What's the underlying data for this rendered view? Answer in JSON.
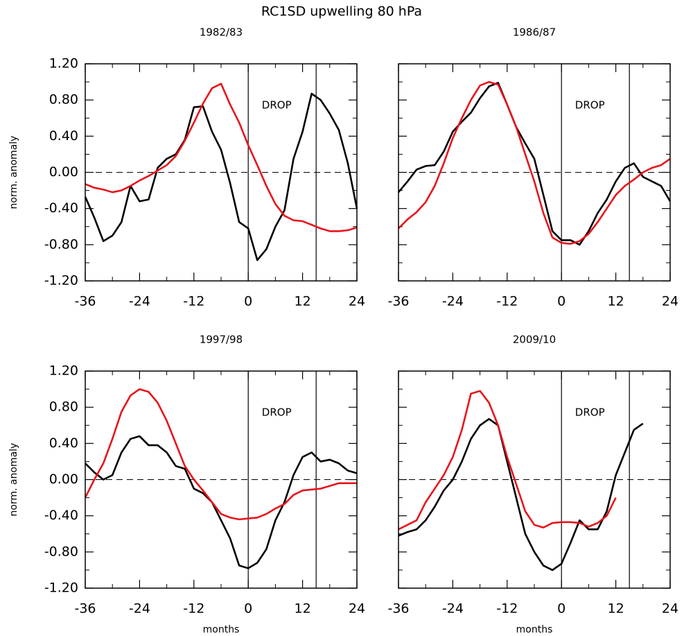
{
  "title": "RC1SD upwelling 80 hPa",
  "chart_data": [
    {
      "type": "line",
      "title": "1982/83",
      "ylabel": "norm. anomaly",
      "x": [
        -36,
        -34,
        -32,
        -30,
        -28,
        -26,
        -24,
        -22,
        -20,
        -18,
        -16,
        -14,
        -12,
        -10,
        -8,
        -6,
        -4,
        -2,
        0,
        2,
        4,
        6,
        8,
        10,
        12,
        14,
        16,
        18,
        20,
        22,
        24
      ],
      "series": [
        {
          "color": "#000000",
          "values": [
            -0.27,
            -0.5,
            -0.76,
            -0.7,
            -0.55,
            -0.15,
            -0.32,
            -0.3,
            0.05,
            0.15,
            0.2,
            0.36,
            0.72,
            0.73,
            0.45,
            0.25,
            -0.12,
            -0.55,
            -0.62,
            -0.97,
            -0.85,
            -0.6,
            -0.42,
            0.15,
            0.45,
            0.87,
            0.8,
            0.65,
            0.47,
            0.1,
            -0.4
          ]
        },
        {
          "color": "#e8141b",
          "values": [
            -0.13,
            -0.17,
            -0.19,
            -0.22,
            -0.2,
            -0.15,
            -0.09,
            -0.04,
            0.02,
            0.08,
            0.18,
            0.35,
            0.55,
            0.76,
            0.93,
            0.98,
            0.75,
            0.55,
            0.3,
            0.08,
            -0.15,
            -0.35,
            -0.48,
            -0.53,
            -0.54,
            -0.58,
            -0.62,
            -0.65,
            -0.65,
            -0.64,
            -0.61
          ]
        }
      ],
      "xlim": [
        -36,
        24
      ],
      "xticks": [
        -36,
        -24,
        -12,
        0,
        12,
        24
      ],
      "ylim": [
        -1.2,
        1.2
      ],
      "yticks": [
        {
          "value": -1.2,
          "label": "-1.20"
        },
        {
          "value": -0.8,
          "label": "-0.80"
        },
        {
          "value": -0.4,
          "label": "-0.40"
        },
        {
          "value": 0,
          "label": "0.00"
        },
        {
          "value": 0.4,
          "label": "0.40"
        },
        {
          "value": 0.8,
          "label": "0.80"
        },
        {
          "value": 1.2,
          "label": "1.20"
        }
      ],
      "vlines": [
        0,
        15
      ],
      "hline": 0,
      "annotations": [
        {
          "text": "DROP",
          "x": 3,
          "y": 0.74
        }
      ]
    },
    {
      "type": "line",
      "title": "1986/87",
      "x": [
        -36,
        -34,
        -32,
        -30,
        -28,
        -26,
        -24,
        -22,
        -20,
        -18,
        -16,
        -14,
        -12,
        -10,
        -8,
        -6,
        -4,
        -2,
        0,
        2,
        4,
        6,
        8,
        10,
        12,
        14,
        16,
        18,
        20,
        22,
        24
      ],
      "series": [
        {
          "color": "#000000",
          "values": [
            -0.22,
            -0.1,
            0.03,
            0.07,
            0.08,
            0.23,
            0.45,
            0.56,
            0.66,
            0.82,
            0.95,
            0.99,
            0.75,
            0.5,
            0.32,
            0.15,
            -0.25,
            -0.65,
            -0.75,
            -0.75,
            -0.8,
            -0.65,
            -0.45,
            -0.3,
            -0.1,
            0.05,
            0.1,
            -0.05,
            -0.1,
            -0.15,
            -0.32
          ]
        },
        {
          "color": "#e8141b",
          "values": [
            -0.62,
            -0.52,
            -0.44,
            -0.33,
            -0.15,
            0.1,
            0.38,
            0.6,
            0.8,
            0.96,
            1.0,
            0.97,
            0.75,
            0.5,
            0.2,
            -0.1,
            -0.45,
            -0.72,
            -0.78,
            -0.79,
            -0.76,
            -0.68,
            -0.55,
            -0.4,
            -0.25,
            -0.15,
            -0.08,
            0.0,
            0.05,
            0.08,
            0.15
          ]
        }
      ],
      "xlim": [
        -36,
        24
      ],
      "xticks": [
        -36,
        -24,
        -12,
        0,
        12,
        24
      ],
      "ylim": [
        -1.2,
        1.2
      ],
      "yticks": [
        -1.2,
        -0.8,
        -0.4,
        0,
        0.4,
        0.8,
        1.2
      ],
      "vlines": [
        0,
        15
      ],
      "hline": 0,
      "annotations": [
        {
          "text": "DROP",
          "x": 3,
          "y": 0.74
        }
      ]
    },
    {
      "type": "line",
      "title": "1997/98",
      "ylabel": "norm. anomaly",
      "xlabel": "months",
      "x": [
        -36,
        -34,
        -32,
        -30,
        -28,
        -26,
        -24,
        -22,
        -20,
        -18,
        -16,
        -14,
        -12,
        -10,
        -8,
        -6,
        -4,
        -2,
        0,
        2,
        4,
        6,
        8,
        10,
        12,
        14,
        16,
        18,
        20,
        22,
        24
      ],
      "series": [
        {
          "color": "#000000",
          "values": [
            0.18,
            0.08,
            0.0,
            0.05,
            0.3,
            0.45,
            0.48,
            0.38,
            0.38,
            0.3,
            0.15,
            0.12,
            -0.1,
            -0.15,
            -0.25,
            -0.45,
            -0.65,
            -0.95,
            -0.98,
            -0.92,
            -0.77,
            -0.45,
            -0.25,
            0.05,
            0.25,
            0.3,
            0.2,
            0.22,
            0.18,
            0.1,
            0.07
          ]
        },
        {
          "color": "#e8141b",
          "values": [
            -0.2,
            0.0,
            0.18,
            0.45,
            0.75,
            0.93,
            1.0,
            0.97,
            0.85,
            0.65,
            0.4,
            0.15,
            0.0,
            -0.12,
            -0.25,
            -0.38,
            -0.42,
            -0.44,
            -0.43,
            -0.42,
            -0.38,
            -0.32,
            -0.27,
            -0.17,
            -0.12,
            -0.11,
            -0.1,
            -0.07,
            -0.04,
            -0.04,
            -0.04
          ]
        }
      ],
      "xlim": [
        -36,
        24
      ],
      "xticks": [
        -36,
        -24,
        -12,
        0,
        12,
        24
      ],
      "ylim": [
        -1.2,
        1.2
      ],
      "yticks": [
        {
          "value": -1.2,
          "label": "-1.20"
        },
        {
          "value": -0.8,
          "label": "-0.80"
        },
        {
          "value": -0.4,
          "label": "-0.40"
        },
        {
          "value": 0,
          "label": "0.00"
        },
        {
          "value": 0.4,
          "label": "0.40"
        },
        {
          "value": 0.8,
          "label": "0.80"
        },
        {
          "value": 1.2,
          "label": "1.20"
        }
      ],
      "vlines": [
        0,
        15
      ],
      "hline": 0,
      "annotations": [
        {
          "text": "DROP",
          "x": 3,
          "y": 0.74
        }
      ]
    },
    {
      "type": "line",
      "title": "2009/10",
      "xlabel": "months",
      "x": [
        -36,
        -34,
        -32,
        -30,
        -28,
        -26,
        -24,
        -22,
        -20,
        -18,
        -16,
        -14,
        -12,
        -10,
        -8,
        -6,
        -4,
        -2,
        0,
        2,
        4,
        6,
        8,
        10,
        12,
        14,
        16,
        18,
        20,
        22,
        24
      ],
      "series": [
        {
          "color": "#000000",
          "values": [
            -0.62,
            -0.58,
            -0.55,
            -0.45,
            -0.3,
            -0.12,
            0.0,
            0.2,
            0.45,
            0.6,
            0.67,
            0.6,
            0.2,
            -0.2,
            -0.6,
            -0.8,
            -0.95,
            -1.0,
            -0.93,
            -0.7,
            -0.45,
            -0.55,
            -0.55,
            -0.35,
            0.05,
            0.3,
            0.55,
            0.62,
            null,
            null,
            null
          ]
        },
        {
          "color": "#e8141b",
          "values": [
            -0.55,
            -0.5,
            -0.45,
            -0.25,
            -0.1,
            0.05,
            0.25,
            0.55,
            0.95,
            0.98,
            0.85,
            0.6,
            0.25,
            -0.05,
            -0.35,
            -0.5,
            -0.53,
            -0.48,
            -0.47,
            -0.47,
            -0.48,
            -0.52,
            -0.48,
            -0.4,
            -0.2,
            null,
            null,
            null,
            null,
            null,
            null
          ]
        }
      ],
      "xlim": [
        -36,
        24
      ],
      "xticks": [
        -36,
        -24,
        -12,
        0,
        12,
        24
      ],
      "ylim": [
        -1.2,
        1.2
      ],
      "yticks": [
        -1.2,
        -0.8,
        -0.4,
        0,
        0.4,
        0.8,
        1.2
      ],
      "vlines": [
        0,
        15
      ],
      "hline": 0,
      "annotations": [
        {
          "text": "DROP",
          "x": 3,
          "y": 0.74
        }
      ]
    }
  ]
}
